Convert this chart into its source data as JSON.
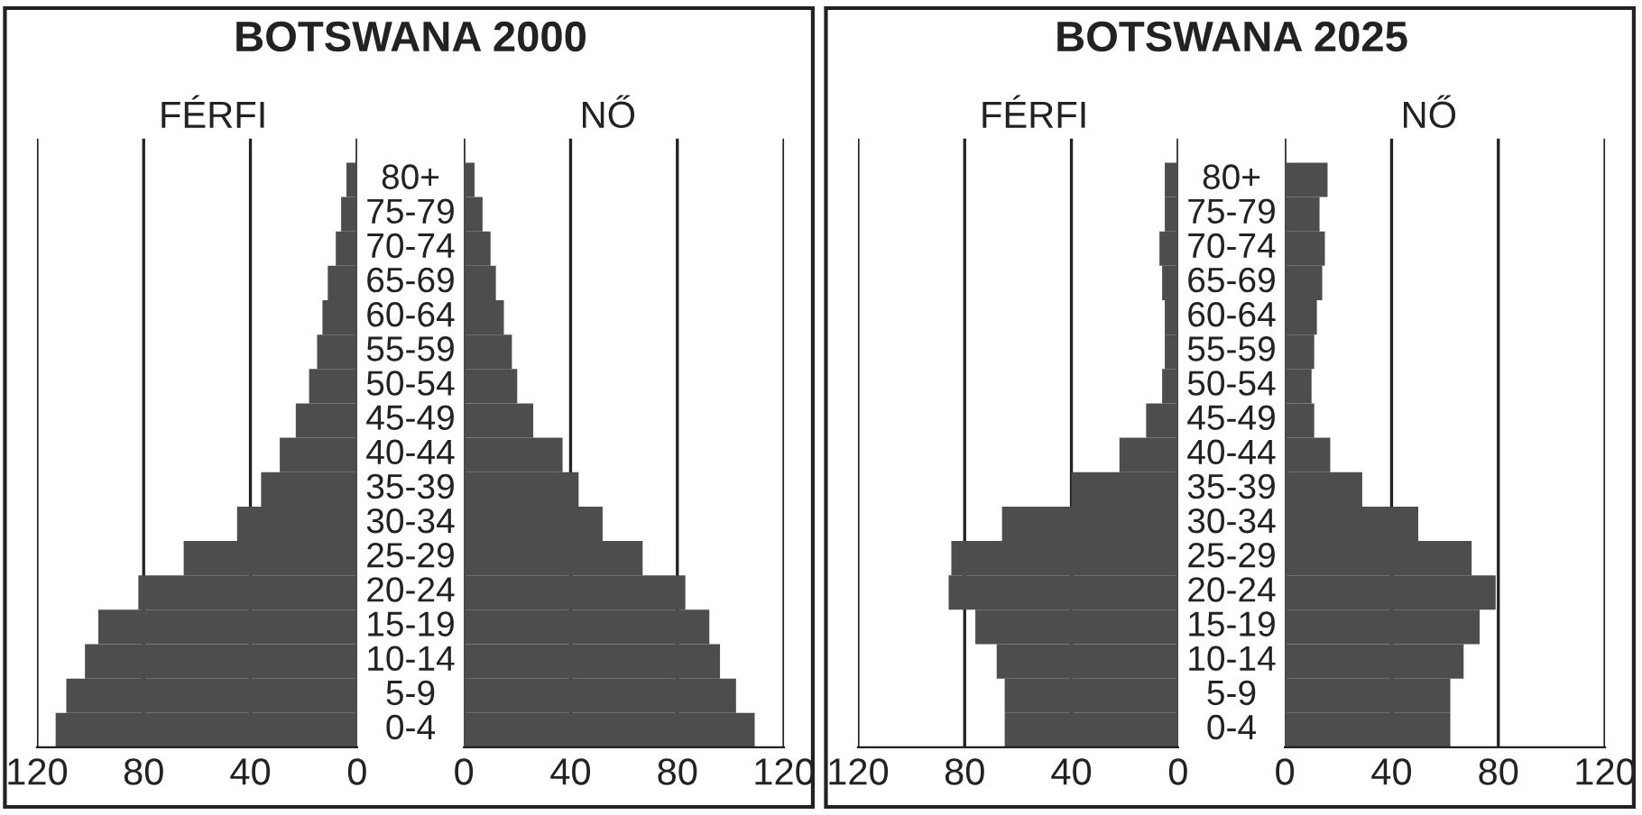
{
  "chart_data": [
    {
      "type": "bar",
      "title": "BOTSWANA 2000",
      "orientation": "horizontal",
      "categories": [
        "80+",
        "75-79",
        "70-74",
        "65-69",
        "60-64",
        "55-59",
        "50-54",
        "45-49",
        "40-44",
        "35-39",
        "30-34",
        "25-29",
        "20-24",
        "15-19",
        "10-14",
        "5-9",
        "0-4"
      ],
      "series": [
        {
          "name": "FÉRFI",
          "color": "#4d4d4d",
          "values": [
            4,
            6,
            8,
            11,
            13,
            15,
            18,
            23,
            29,
            36,
            45,
            65,
            82,
            97,
            102,
            109,
            113
          ]
        }
      ],
      "xlim": [
        120,
        0
      ],
      "xticks": [
        120,
        80,
        40,
        0
      ],
      "grid": "x",
      "legend": false
    },
    {
      "type": "bar",
      "orientation": "horizontal",
      "categories": [
        null,
        null,
        null,
        null,
        null,
        null,
        null,
        null,
        null,
        null,
        null,
        null,
        null,
        null,
        null,
        null,
        null
      ],
      "series": [
        {
          "name": "NŐ",
          "color": "#4d4d4d",
          "values": [
            4,
            7,
            10,
            12,
            15,
            18,
            20,
            26,
            37,
            43,
            52,
            67,
            83,
            92,
            96,
            102,
            109
          ]
        }
      ],
      "xlim": [
        0,
        120
      ],
      "xticks": [
        0,
        40,
        80,
        120
      ],
      "grid": "x",
      "legend": false,
      "tick_labels": "x"
    },
    {
      "type": "bar",
      "title": "BOTSWANA 2025",
      "orientation": "horizontal",
      "categories": [
        "80+",
        "75-79",
        "70-74",
        "65-69",
        "60-64",
        "55-59",
        "50-54",
        "45-49",
        "40-44",
        "35-39",
        "30-34",
        "25-29",
        "20-24",
        "15-19",
        "10-14",
        "5-9",
        "0-4"
      ],
      "series": [
        {
          "name": "FÉRFI",
          "color": "#4d4d4d",
          "values": [
            5,
            5,
            7,
            6,
            5,
            5,
            6,
            12,
            22,
            40,
            66,
            85,
            86,
            76,
            68,
            65,
            65
          ]
        }
      ],
      "xlim": [
        120,
        0
      ],
      "xticks": [
        120,
        80,
        40,
        0
      ],
      "grid": "x",
      "legend": false
    },
    {
      "type": "bar",
      "orientation": "horizontal",
      "categories": [
        null,
        null,
        null,
        null,
        null,
        null,
        null,
        null,
        null,
        null,
        null,
        null,
        null,
        null,
        null,
        null,
        null
      ],
      "series": [
        {
          "name": "NŐ",
          "color": "#4d4d4d",
          "values": [
            16,
            13,
            15,
            14,
            12,
            11,
            10,
            11,
            17,
            29,
            50,
            70,
            79,
            73,
            67,
            62,
            62
          ]
        }
      ],
      "xlim": [
        0,
        120
      ],
      "xticks": [
        0,
        40,
        80,
        120
      ],
      "grid": "x",
      "legend": false,
      "tick_labels": "x"
    }
  ]
}
